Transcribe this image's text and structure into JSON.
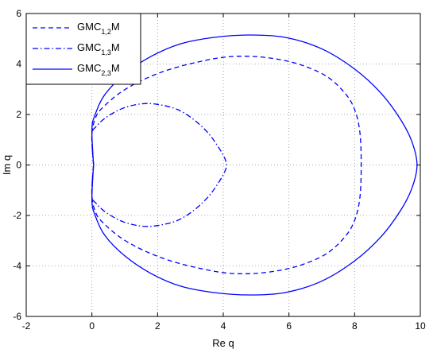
{
  "chart_data": {
    "type": "line",
    "title": "",
    "xlabel": "Re q",
    "ylabel": "Im q",
    "xlim": [
      -2,
      10
    ],
    "ylim": [
      -6,
      6
    ],
    "xticks": [
      -2,
      0,
      2,
      4,
      6,
      8,
      10
    ],
    "yticks": [
      -6,
      -4,
      -2,
      0,
      2,
      4,
      6
    ],
    "grid": true,
    "legend_position": "top-left",
    "color": "#0000ff",
    "series": [
      {
        "name_main": "GMC",
        "name_sub": "1,2",
        "name_tail": "M",
        "style": "dashed",
        "x": [
          0.05,
          0.0,
          0.12,
          0.35,
          0.9,
          1.6,
          2.4,
          3.3,
          4.1,
          4.9,
          5.7,
          6.4,
          7.1,
          7.6,
          7.95,
          8.15,
          8.2,
          8.15,
          7.95,
          7.6,
          7.1,
          6.4,
          5.7,
          4.9,
          4.1,
          3.3,
          2.4,
          1.6,
          0.9,
          0.35,
          0.12,
          0.0,
          0.05
        ],
        "y": [
          0.0,
          1.2,
          1.9,
          2.3,
          2.9,
          3.4,
          3.8,
          4.1,
          4.28,
          4.3,
          4.18,
          3.95,
          3.55,
          3.0,
          2.35,
          1.4,
          0.0,
          -1.4,
          -2.35,
          -3.0,
          -3.55,
          -3.95,
          -4.18,
          -4.3,
          -4.28,
          -4.1,
          -3.8,
          -3.4,
          -2.9,
          -2.3,
          -1.9,
          -1.2,
          0.0
        ]
      },
      {
        "name_main": "GMC",
        "name_sub": "1,3",
        "name_tail": "M",
        "style": "dash-dot",
        "x": [
          0.05,
          0.0,
          0.15,
          0.45,
          0.95,
          1.5,
          2.0,
          2.6,
          3.1,
          3.55,
          3.88,
          4.05,
          4.1,
          4.05,
          3.88,
          3.55,
          3.1,
          2.6,
          2.0,
          1.5,
          0.95,
          0.45,
          0.15,
          0.0,
          0.05
        ],
        "y": [
          0.0,
          1.2,
          1.55,
          1.9,
          2.25,
          2.42,
          2.4,
          2.2,
          1.8,
          1.25,
          0.65,
          0.25,
          0.0,
          -0.25,
          -0.65,
          -1.25,
          -1.8,
          -2.2,
          -2.4,
          -2.42,
          -2.25,
          -1.9,
          -1.55,
          -1.2,
          0.0
        ]
      },
      {
        "name_main": "GMC",
        "name_sub": "2,3",
        "name_tail": "M",
        "style": "solid",
        "x": [
          0.05,
          0.0,
          0.1,
          0.4,
          1.0,
          1.8,
          2.7,
          3.7,
          4.8,
          5.9,
          7.0,
          8.0,
          8.8,
          9.4,
          9.75,
          9.9,
          9.75,
          9.4,
          8.8,
          8.0,
          7.0,
          5.9,
          4.8,
          3.7,
          2.7,
          1.8,
          1.0,
          0.4,
          0.1,
          0.0,
          0.05
        ],
        "y": [
          0.0,
          1.4,
          2.0,
          2.8,
          3.6,
          4.3,
          4.8,
          5.05,
          5.15,
          5.05,
          4.6,
          3.8,
          2.85,
          1.8,
          0.9,
          0.0,
          -0.9,
          -1.8,
          -2.85,
          -3.8,
          -4.6,
          -5.05,
          -5.15,
          -5.05,
          -4.8,
          -4.3,
          -3.6,
          -2.8,
          -2.0,
          -1.4,
          0.0
        ]
      }
    ]
  }
}
